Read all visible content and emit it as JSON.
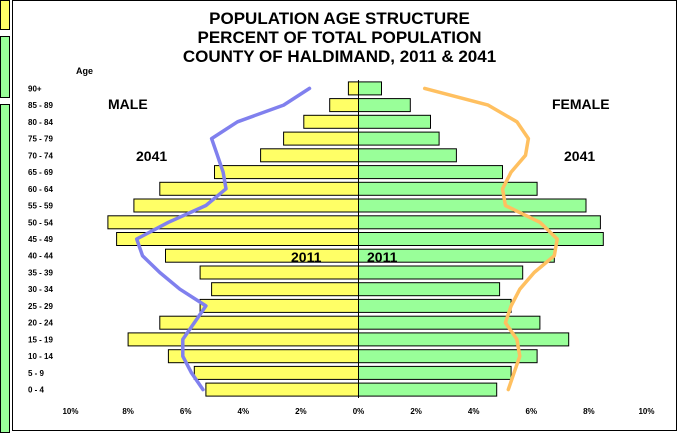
{
  "chart_data": {
    "type": "bar",
    "orientation": "horizontal",
    "title_lines": [
      "POPULATION AGE STRUCTURE",
      "PERCENT OF TOTAL POPULATION",
      "COUNTY OF HALDIMAND, 2011 & 2041"
    ],
    "ylabel": "Age",
    "categories": [
      "0 - 4",
      "5 - 9",
      "10 - 14",
      "15 - 19",
      "20 - 24",
      "25 - 29",
      "30 - 34",
      "35 - 39",
      "40 - 44",
      "45 - 49",
      "50 - 54",
      "55 - 59",
      "60 - 64",
      "65 - 69",
      "70 - 74",
      "75 - 79",
      "80 - 84",
      "85 - 89",
      "90+"
    ],
    "xticks": [
      "10%",
      "8%",
      "6%",
      "4%",
      "2%",
      "0%",
      "2%",
      "4%",
      "6%",
      "8%",
      "10%"
    ],
    "xlim": [
      -10,
      10
    ],
    "side_labels": {
      "male": "MALE",
      "female": "FEMALE"
    },
    "year_labels": {
      "male_2041": "2041",
      "female_2041": "2041",
      "male_2011": "2011",
      "female_2011": "2011"
    },
    "series": [
      {
        "name": "2011",
        "side": "male",
        "style": "bar",
        "color": "#ffff66",
        "values": [
          5.3,
          5.7,
          6.6,
          8.0,
          6.9,
          5.5,
          5.1,
          5.5,
          6.7,
          8.4,
          8.7,
          7.8,
          6.9,
          5.0,
          3.4,
          2.6,
          1.9,
          1.0,
          0.35
        ]
      },
      {
        "name": "2011",
        "side": "female",
        "style": "bar",
        "color": "#99ff99",
        "values": [
          4.8,
          5.3,
          6.2,
          7.3,
          6.3,
          5.3,
          4.9,
          5.7,
          6.8,
          8.5,
          8.4,
          7.9,
          6.2,
          5.0,
          3.4,
          2.8,
          2.5,
          1.8,
          0.8
        ]
      },
      {
        "name": "2041",
        "side": "male",
        "style": "line",
        "color": "#8080ee",
        "values": [
          5.4,
          5.8,
          6.1,
          6.1,
          5.7,
          5.3,
          6.2,
          6.9,
          7.5,
          7.7,
          6.6,
          5.3,
          4.6,
          4.7,
          4.9,
          5.1,
          4.2,
          2.6,
          1.7
        ]
      },
      {
        "name": "2041",
        "side": "female",
        "style": "line",
        "color": "#ffc060",
        "values": [
          5.2,
          5.4,
          5.6,
          5.5,
          5.1,
          5.3,
          5.6,
          6.1,
          6.8,
          6.9,
          6.3,
          5.1,
          5.0,
          5.3,
          5.8,
          5.9,
          5.5,
          4.5,
          2.3
        ]
      }
    ],
    "colors": {
      "male_bar": "#ffff66",
      "female_bar": "#99ff99",
      "male_line": "#8080ee",
      "female_line": "#ffc060",
      "bar_border": "#000000"
    },
    "grid": false,
    "legend": "none"
  }
}
